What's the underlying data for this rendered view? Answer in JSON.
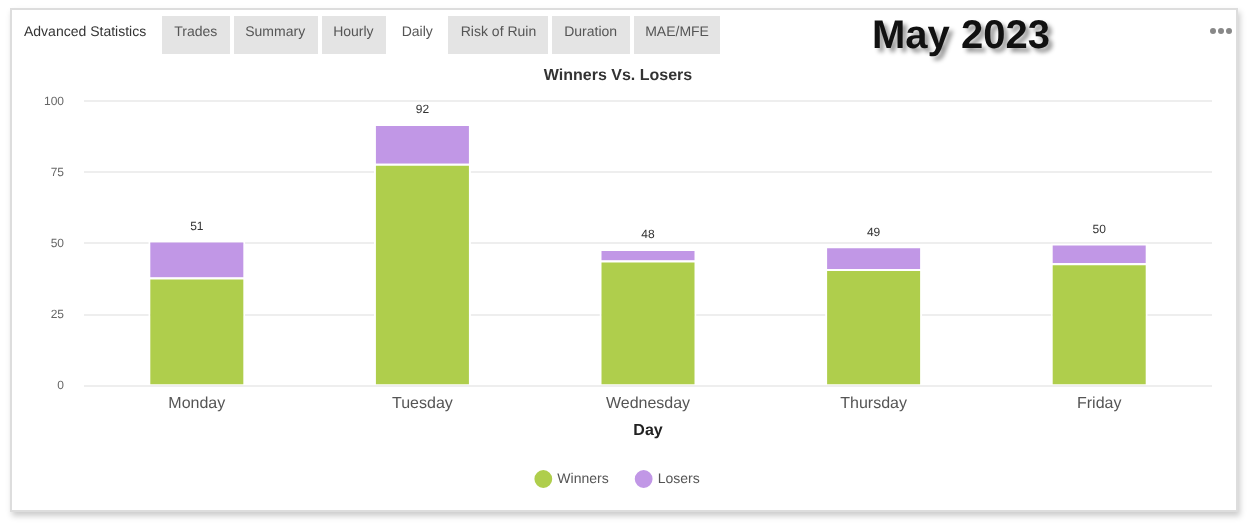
{
  "chart_data": {
    "type": "bar",
    "title": "Winners Vs. Losers",
    "subtitle": "May 2023",
    "xlabel": "Day",
    "annotations": [
      "Advanced Statistics",
      "Trades",
      "Summary",
      "Hourly",
      "Daily",
      "Risk of Ruin",
      "Duration",
      "MAE/MFE"
    ],
    "categories": [
      "Monday",
      "Tuesday",
      "Wednesday",
      "Thursday",
      "Friday"
    ],
    "series": [
      {
        "name": "Winners",
        "color": "#afce4c",
        "values": [
          38,
          78,
          44,
          41,
          43
        ]
      },
      {
        "name": "Losers",
        "color": "#c197e6",
        "values": [
          13,
          14,
          4,
          8,
          7
        ]
      }
    ],
    "stacked": true,
    "totals": [
      "51",
      "92",
      "48",
      "49",
      "50"
    ],
    "ylim": [
      0,
      100
    ],
    "yticks": [
      0,
      25,
      50,
      75,
      100
    ],
    "grid": "y",
    "legend": "bottom"
  }
}
